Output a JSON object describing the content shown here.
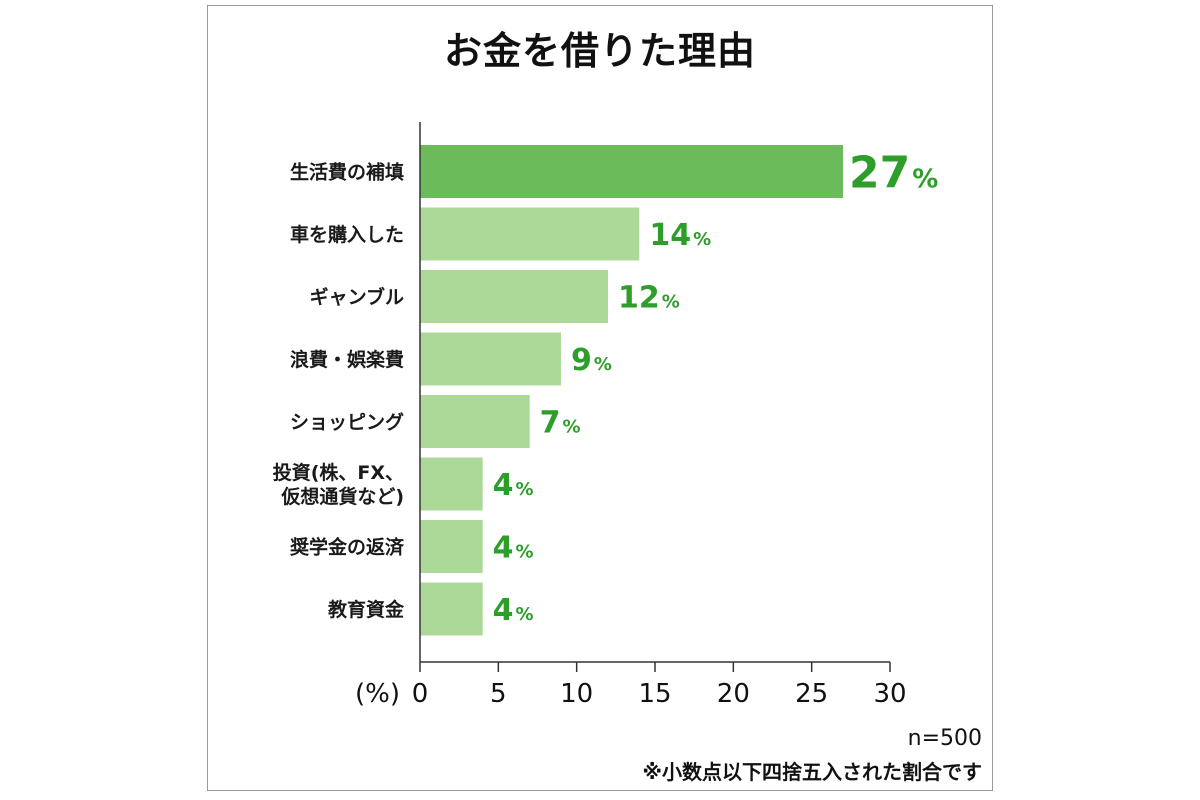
{
  "chart_data": {
    "type": "bar",
    "orientation": "horizontal",
    "title": "お金を借りた理由",
    "categories": [
      "生活費の補填",
      "車を購入した",
      "ギャンブル",
      "浪費・娯楽費",
      "ショッピング",
      "投資(株、FX、\n仮想通貨など)",
      "奨学金の返済",
      "教育資金"
    ],
    "values": [
      27,
      14,
      12,
      9,
      7,
      4,
      4,
      4
    ],
    "value_suffix": "%",
    "xlabel": "(%)",
    "xlim": [
      0,
      30
    ],
    "xticks": [
      0,
      5,
      10,
      15,
      20,
      25,
      30
    ],
    "grid": false,
    "highlight_index": 0,
    "colors": {
      "highlight": "#6cbb5a",
      "bar": "#acd898",
      "label": "#2e9e2a"
    }
  },
  "notes": {
    "sample": "n=500",
    "rounding": "※小数点以下四捨五入された割合です"
  }
}
